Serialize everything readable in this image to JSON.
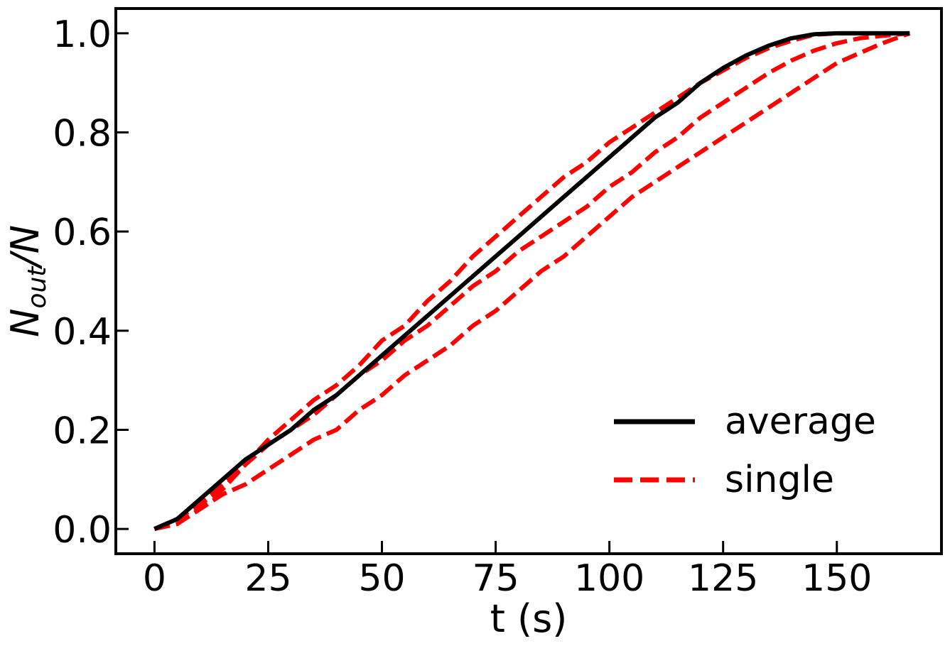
{
  "chart_data": {
    "type": "line",
    "title": "",
    "xlabel": "t (s)",
    "ylabel": {
      "base": "N",
      "sub": "out",
      "rest": "/N"
    },
    "xlim": [
      -8.5,
      173
    ],
    "ylim": [
      -0.05,
      1.05
    ],
    "xticks": [
      0,
      25,
      50,
      75,
      100,
      125,
      150
    ],
    "yticks": [
      0.0,
      0.2,
      0.4,
      0.6,
      0.8,
      1.0
    ],
    "xtick_labels": [
      "0",
      "25",
      "50",
      "75",
      "100",
      "125",
      "150"
    ],
    "ytick_labels": [
      "0.0",
      "0.2",
      "0.4",
      "0.6",
      "0.8",
      "1.0"
    ],
    "grid": false,
    "legend": {
      "placement": "bottom-right",
      "entries": [
        "average",
        "single"
      ]
    },
    "series": [
      {
        "name": "single",
        "color": "#ff0000",
        "style": "dashed",
        "x": [
          0,
          5,
          10,
          15,
          20,
          25,
          30,
          35,
          40,
          45,
          50,
          55,
          60,
          65,
          70,
          75,
          80,
          85,
          90,
          95,
          100,
          105,
          110,
          115,
          120,
          125,
          130,
          135,
          140,
          145,
          150,
          155,
          160,
          166
        ],
        "y": [
          0.0,
          0.02,
          0.05,
          0.08,
          0.13,
          0.18,
          0.22,
          0.26,
          0.29,
          0.33,
          0.38,
          0.41,
          0.46,
          0.5,
          0.55,
          0.59,
          0.63,
          0.67,
          0.71,
          0.74,
          0.78,
          0.81,
          0.84,
          0.87,
          0.9,
          0.925,
          0.95,
          0.97,
          0.985,
          0.997,
          1.0,
          1.0,
          1.0,
          1.0
        ]
      },
      {
        "name": "single",
        "color": "#ff0000",
        "style": "dashed",
        "x": [
          0,
          5,
          10,
          15,
          20,
          25,
          30,
          35,
          40,
          45,
          50,
          55,
          60,
          65,
          70,
          75,
          80,
          85,
          90,
          95,
          100,
          105,
          110,
          115,
          120,
          125,
          130,
          135,
          140,
          145,
          150,
          155,
          160,
          166
        ],
        "y": [
          0.0,
          0.02,
          0.05,
          0.09,
          0.13,
          0.17,
          0.2,
          0.23,
          0.27,
          0.31,
          0.34,
          0.38,
          0.41,
          0.45,
          0.49,
          0.52,
          0.56,
          0.59,
          0.62,
          0.65,
          0.69,
          0.72,
          0.76,
          0.79,
          0.83,
          0.86,
          0.89,
          0.92,
          0.945,
          0.965,
          0.98,
          0.99,
          0.995,
          1.0
        ]
      },
      {
        "name": "single",
        "color": "#ff0000",
        "style": "dashed",
        "x": [
          0,
          5,
          10,
          15,
          20,
          25,
          30,
          35,
          40,
          45,
          50,
          55,
          60,
          65,
          70,
          75,
          80,
          85,
          90,
          95,
          100,
          105,
          110,
          115,
          120,
          125,
          130,
          135,
          140,
          145,
          150,
          155,
          160,
          166
        ],
        "y": [
          0.0,
          0.01,
          0.04,
          0.07,
          0.09,
          0.12,
          0.15,
          0.18,
          0.2,
          0.24,
          0.27,
          0.31,
          0.34,
          0.37,
          0.41,
          0.44,
          0.48,
          0.52,
          0.55,
          0.59,
          0.63,
          0.67,
          0.7,
          0.73,
          0.76,
          0.79,
          0.82,
          0.85,
          0.88,
          0.91,
          0.94,
          0.96,
          0.98,
          1.0
        ]
      },
      {
        "name": "average",
        "color": "#000000",
        "style": "solid",
        "x": [
          0,
          5,
          10,
          15,
          20,
          25,
          30,
          35,
          40,
          45,
          50,
          55,
          60,
          65,
          70,
          75,
          80,
          85,
          90,
          95,
          100,
          105,
          110,
          115,
          120,
          125,
          130,
          135,
          140,
          145,
          150,
          155,
          160,
          166
        ],
        "y": [
          0.0,
          0.02,
          0.06,
          0.1,
          0.14,
          0.17,
          0.2,
          0.24,
          0.27,
          0.31,
          0.35,
          0.39,
          0.43,
          0.47,
          0.51,
          0.55,
          0.59,
          0.63,
          0.67,
          0.71,
          0.75,
          0.79,
          0.83,
          0.86,
          0.9,
          0.93,
          0.955,
          0.975,
          0.99,
          0.998,
          1.0,
          1.0,
          1.0,
          1.0
        ]
      }
    ]
  }
}
